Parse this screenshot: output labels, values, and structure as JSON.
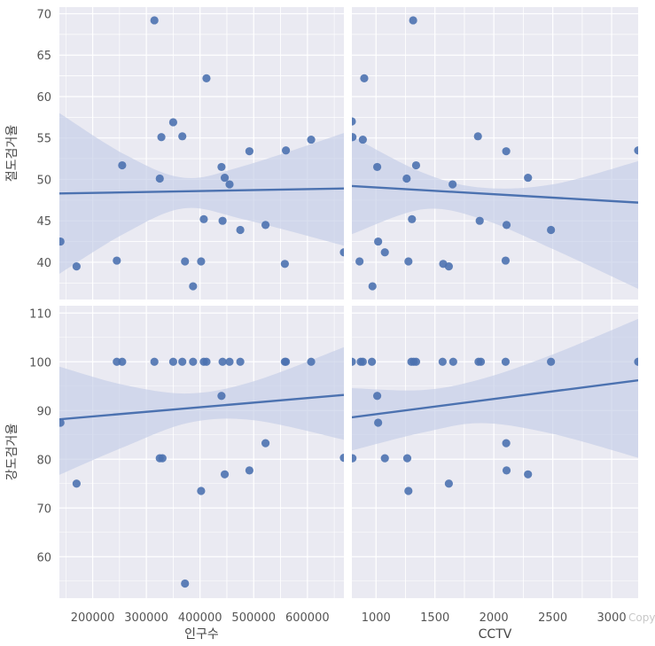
{
  "chart_data": {
    "type": "scatter",
    "layout": "pair-grid 2x2 with linear regression lines and confidence bands",
    "grid": true,
    "colors": {
      "panel_bg": "#eaeaf2",
      "grid": "#ffffff",
      "points": "#4c72b0",
      "line": "#4c72b0",
      "band": "#c3cde6"
    },
    "x_vars": [
      {
        "label": "인구수",
        "range": [
          138000,
          668000
        ],
        "ticks": [
          200000,
          300000,
          400000,
          500000,
          600000
        ],
        "tick_labels": [
          "200000",
          "300000",
          "400000",
          "500000",
          "600000"
        ]
      },
      {
        "label": "CCTV",
        "range": [
          795,
          3225
        ],
        "ticks": [
          1000,
          1500,
          2000,
          2500,
          3000
        ],
        "tick_labels": [
          "1000",
          "1500",
          "2000",
          "2500",
          "3000"
        ]
      }
    ],
    "y_vars": [
      {
        "label": "절도검거율",
        "range": [
          35.5,
          70.8
        ],
        "ticks": [
          40,
          45,
          50,
          55,
          60,
          65,
          70
        ],
        "tick_labels": [
          "40",
          "45",
          "50",
          "55",
          "60",
          "65",
          "70"
        ]
      },
      {
        "label": "강도검거율",
        "range": [
          51.5,
          111.5
        ],
        "ticks": [
          60,
          70,
          80,
          90,
          100,
          110
        ],
        "tick_labels": [
          "60",
          "70",
          "80",
          "90",
          "100",
          "110"
        ]
      }
    ],
    "panels": [
      {
        "row": 0,
        "col": 0,
        "points": [
          [
            140000,
            42.5
          ],
          [
            170000,
            39.5
          ],
          [
            245000,
            40.2
          ],
          [
            255000,
            51.7
          ],
          [
            315000,
            69.2
          ],
          [
            325000,
            50.1
          ],
          [
            328000,
            55.1
          ],
          [
            350000,
            56.9
          ],
          [
            367000,
            55.2
          ],
          [
            372000,
            40.1
          ],
          [
            387000,
            37.1
          ],
          [
            402000,
            40.1
          ],
          [
            407000,
            45.2
          ],
          [
            412000,
            62.2
          ],
          [
            440000,
            51.5
          ],
          [
            442000,
            45.0
          ],
          [
            446000,
            50.2
          ],
          [
            455000,
            49.4
          ],
          [
            475000,
            43.9
          ],
          [
            492000,
            53.4
          ],
          [
            522000,
            44.5
          ],
          [
            558000,
            39.8
          ],
          [
            560000,
            53.5
          ],
          [
            607000,
            54.8
          ],
          [
            668000,
            41.2
          ]
        ],
        "regression": {
          "y_start": 48.3,
          "y_end": 48.9
        },
        "band": {
          "upper": [
            [
              138000,
              58.0
            ],
            [
              260000,
              53.0
            ],
            [
              370000,
              50.2
            ],
            [
              480000,
              51.6
            ],
            [
              668000,
              55.6
            ]
          ],
          "lower": [
            [
              138000,
              38.6
            ],
            [
              260000,
              43.5
            ],
            [
              370000,
              46.5
            ],
            [
              480000,
              45.2
            ],
            [
              668000,
              42.0
            ]
          ]
        }
      },
      {
        "row": 0,
        "col": 1,
        "points": [
          [
            795,
            57.0
          ],
          [
            800,
            55.1
          ],
          [
            860,
            40.1
          ],
          [
            888,
            54.8
          ],
          [
            900,
            62.2
          ],
          [
            970,
            37.1
          ],
          [
            1010,
            51.5
          ],
          [
            1018,
            42.5
          ],
          [
            1075,
            41.2
          ],
          [
            1260,
            50.1
          ],
          [
            1275,
            40.1
          ],
          [
            1305,
            45.2
          ],
          [
            1315,
            69.2
          ],
          [
            1340,
            51.7
          ],
          [
            1570,
            39.8
          ],
          [
            1618,
            39.5
          ],
          [
            1650,
            49.4
          ],
          [
            1865,
            55.2
          ],
          [
            1880,
            45.0
          ],
          [
            2100,
            40.2
          ],
          [
            2105,
            53.4
          ],
          [
            2108,
            44.5
          ],
          [
            2290,
            50.2
          ],
          [
            2485,
            43.9
          ],
          [
            3225,
            53.5
          ]
        ],
        "regression": {
          "y_start": 49.2,
          "y_end": 47.2
        },
        "band": {
          "upper": [
            [
              795,
              55.2
            ],
            [
              1400,
              50.8
            ],
            [
              1900,
              49.0
            ],
            [
              2500,
              49.4
            ],
            [
              3225,
              52.2
            ]
          ],
          "lower": [
            [
              795,
              43.4
            ],
            [
              1400,
              46.4
            ],
            [
              1900,
              45.2
            ],
            [
              2500,
              41.6
            ],
            [
              3225,
              36.8
            ]
          ]
        }
      },
      {
        "row": 1,
        "col": 0,
        "points": [
          [
            140000,
            87.5
          ],
          [
            170000,
            75.0
          ],
          [
            245000,
            100
          ],
          [
            255000,
            100
          ],
          [
            315000,
            100
          ],
          [
            325000,
            80.2
          ],
          [
            330000,
            80.2
          ],
          [
            350000,
            100
          ],
          [
            367000,
            100
          ],
          [
            372000,
            54.5
          ],
          [
            387000,
            100
          ],
          [
            402000,
            73.5
          ],
          [
            407000,
            100
          ],
          [
            412000,
            100
          ],
          [
            440000,
            93.0
          ],
          [
            442000,
            100
          ],
          [
            446000,
            76.9
          ],
          [
            455000,
            100
          ],
          [
            475000,
            100
          ],
          [
            492000,
            77.7
          ],
          [
            522000,
            83.3
          ],
          [
            558000,
            100
          ],
          [
            560000,
            100
          ],
          [
            607000,
            100
          ],
          [
            668000,
            80.3
          ]
        ],
        "regression": {
          "y_start": 88.2,
          "y_end": 93.2
        },
        "band": {
          "upper": [
            [
              138000,
              99.0
            ],
            [
              260000,
              95.2
            ],
            [
              380000,
              93.5
            ],
            [
              500000,
              96.0
            ],
            [
              668000,
              103.0
            ]
          ],
          "lower": [
            [
              138000,
              76.8
            ],
            [
              260000,
              82.6
            ],
            [
              380000,
              87.5
            ],
            [
              500000,
              88.0
            ],
            [
              668000,
              84.0
            ]
          ]
        }
      },
      {
        "row": 1,
        "col": 1,
        "points": [
          [
            795,
            100
          ],
          [
            800,
            80.2
          ],
          [
            870,
            100
          ],
          [
            888,
            100
          ],
          [
            965,
            100
          ],
          [
            1010,
            93.0
          ],
          [
            1018,
            87.5
          ],
          [
            1075,
            80.2
          ],
          [
            1265,
            80.2
          ],
          [
            1275,
            73.5
          ],
          [
            1300,
            100
          ],
          [
            1320,
            100
          ],
          [
            1340,
            100
          ],
          [
            1565,
            100
          ],
          [
            1618,
            75.0
          ],
          [
            1655,
            100
          ],
          [
            1870,
            100
          ],
          [
            1890,
            100
          ],
          [
            2100,
            100
          ],
          [
            2105,
            83.3
          ],
          [
            2108,
            77.7
          ],
          [
            2290,
            76.9
          ],
          [
            2485,
            100
          ],
          [
            3225,
            100
          ]
        ],
        "regression": {
          "y_start": 88.6,
          "y_end": 96.2
        },
        "band": {
          "upper": [
            [
              795,
              94.6
            ],
            [
              1400,
              94.2
            ],
            [
              1900,
              96.5
            ],
            [
              2500,
              101.5
            ],
            [
              3225,
              108.8
            ]
          ],
          "lower": [
            [
              795,
              81.8
            ],
            [
              1400,
              85.5
            ],
            [
              1900,
              87.4
            ],
            [
              2500,
              85.2
            ],
            [
              3225,
              80.3
            ]
          ]
        }
      }
    ]
  },
  "watermark": "Copy"
}
